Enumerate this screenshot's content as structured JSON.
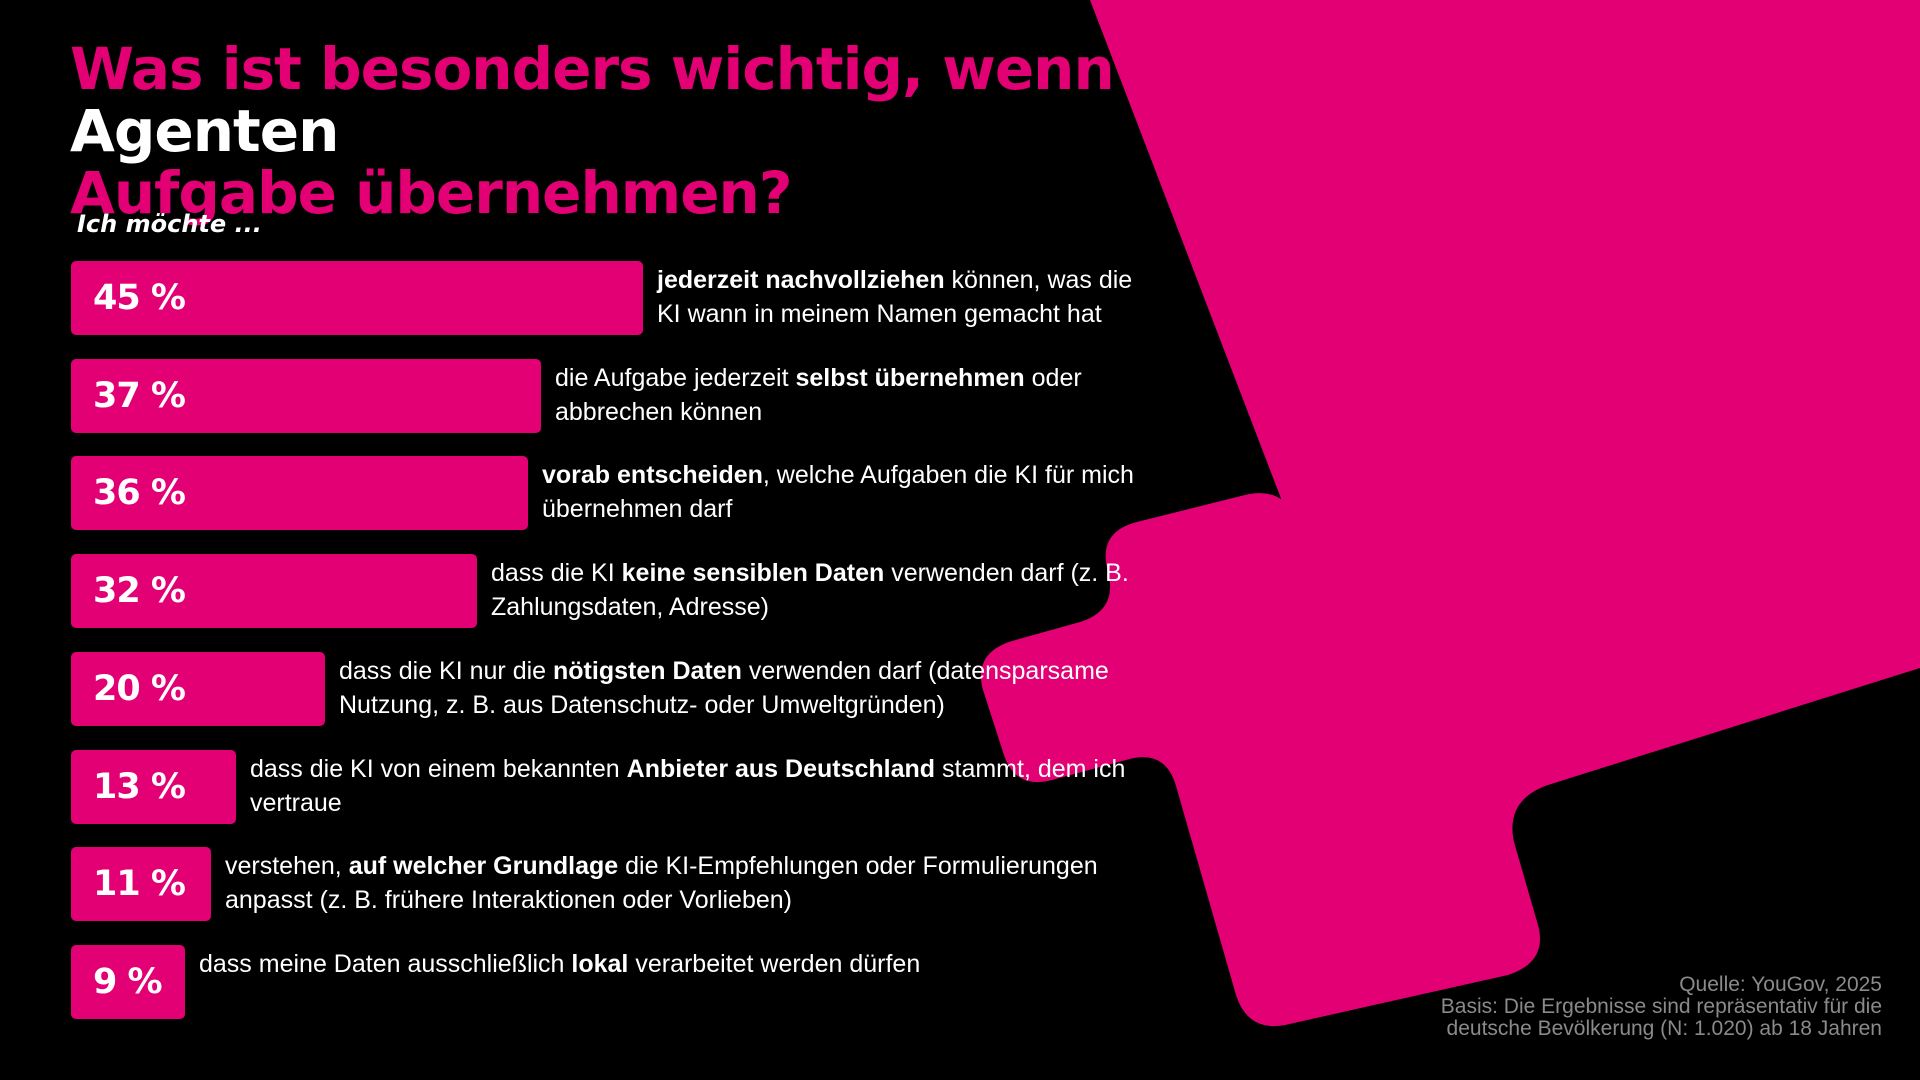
{
  "chart_data": {
    "type": "bar",
    "orientation": "horizontal",
    "title": [
      "Was ist besonders wichtig, wenn KI-",
      "Agenten",
      "Aufgabe übernehmen?"
    ],
    "subtitle": "Ich möchte ...",
    "value_suffix": " %",
    "xlim": [
      0,
      100
    ],
    "bars": [
      {
        "value": 45,
        "label": [
          {
            "t": "jederzeit nachvollziehen",
            "b": true
          },
          {
            "t": " können, was die KI wann in meinem Namen gemacht hat",
            "b": false
          }
        ]
      },
      {
        "value": 37,
        "label": [
          {
            "t": "die Aufgabe jederzeit ",
            "b": false
          },
          {
            "t": "selbst übernehmen",
            "b": true
          },
          {
            "t": " oder abbrechen können",
            "b": false
          }
        ]
      },
      {
        "value": 36,
        "label": [
          {
            "t": "vorab entscheiden",
            "b": true
          },
          {
            "t": ", welche Aufgaben die KI für mich übernehmen darf",
            "b": false
          }
        ]
      },
      {
        "value": 32,
        "label": [
          {
            "t": "dass die KI ",
            "b": false
          },
          {
            "t": "keine sensiblen Daten",
            "b": true
          },
          {
            "t": " verwenden darf (z. B. Zahlungsdaten, Adresse)",
            "b": false
          }
        ]
      },
      {
        "value": 20,
        "label": [
          {
            "t": "dass die KI nur die ",
            "b": false
          },
          {
            "t": "nötigsten Daten",
            "b": true
          },
          {
            "t": " verwenden darf (datensparsame Nutzung, z. B. aus Datenschutz- oder Umweltgründen)",
            "b": false
          }
        ]
      },
      {
        "value": 13,
        "label": [
          {
            "t": "dass die KI von einem bekannten ",
            "b": false
          },
          {
            "t": "Anbieter aus Deutschland",
            "b": true
          },
          {
            "t": " stammt, dem ich vertraue",
            "b": false
          }
        ]
      },
      {
        "value": 11,
        "label": [
          {
            "t": "verstehen, ",
            "b": false
          },
          {
            "t": "auf welcher Grundlage",
            "b": true
          },
          {
            "t": " die KI-Empfehlungen oder Formulierungen anpasst (z. B. frühere Interaktionen oder Vorlieben)",
            "b": false
          }
        ]
      },
      {
        "value": 9,
        "label": [
          {
            "t": "dass meine Daten ausschließlich ",
            "b": false
          },
          {
            "t": "lokal",
            "b": true
          },
          {
            "t": " verarbeitet werden dürfen",
            "b": false
          }
        ]
      }
    ],
    "colors": {
      "bar": "#e20074",
      "background": "#000000",
      "text": "#ffffff",
      "source": "#8a8a8a"
    }
  },
  "source": {
    "line1": "Quelle: YouGov, 2025",
    "line2": "Basis: Die Ergebnisse sind repräsentativ für die",
    "line3": "deutsche Bevölkerung (N: 1.020) ab 18 Jahren"
  }
}
